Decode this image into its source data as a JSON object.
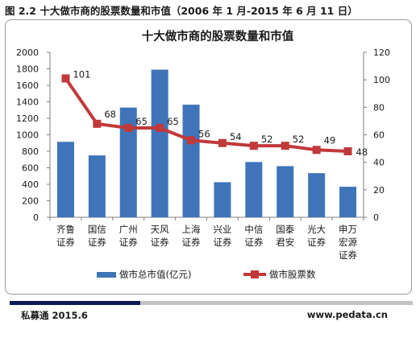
{
  "caption": "图 2.2  十大做市商的股票数量和市值（2006 年 1 月-2015 年 6 月 11 日）",
  "footer": {
    "source": "私募通 2015.6",
    "website": "www.pedata.cn"
  },
  "colors": {
    "bar": "#3f74b8",
    "line": "#c0393b",
    "footer_dark": "#0d1a57",
    "footer_light": "#c2c2c2"
  },
  "chart_data": {
    "type": "bar",
    "title": "十大做市商的股票数量和市值",
    "categories": [
      [
        "齐鲁",
        "证券"
      ],
      [
        "国信",
        "证券"
      ],
      [
        "广州",
        "证券"
      ],
      [
        "天风",
        "证券"
      ],
      [
        "上海",
        "证券"
      ],
      [
        "兴业",
        "证券"
      ],
      [
        "中信",
        "证券"
      ],
      [
        "国泰",
        "君安"
      ],
      [
        "光大",
        "证券"
      ],
      [
        "申万",
        "宏源",
        "证券"
      ]
    ],
    "series": [
      {
        "name": "做市总市值(亿元)",
        "type": "bar",
        "axis": "left",
        "values": [
          915,
          750,
          1330,
          1790,
          1365,
          425,
          670,
          620,
          535,
          370
        ]
      },
      {
        "name": "做市股票数",
        "type": "line",
        "axis": "right",
        "values": [
          101,
          68,
          65,
          65,
          56,
          54,
          52,
          52,
          49,
          48
        ],
        "data_labels": [
          "101",
          "68",
          "65",
          "65",
          "56",
          "54",
          "52",
          "52",
          "49",
          "48"
        ]
      }
    ],
    "y_left": {
      "min": 0,
      "max": 2000,
      "ticks": [
        0,
        200,
        400,
        600,
        800,
        1000,
        1200,
        1400,
        1600,
        1800,
        2000
      ]
    },
    "y_right": {
      "min": 0,
      "max": 120,
      "ticks": [
        0,
        20,
        40,
        60,
        80,
        100,
        120
      ]
    },
    "grid": false,
    "legend_position": "bottom"
  }
}
